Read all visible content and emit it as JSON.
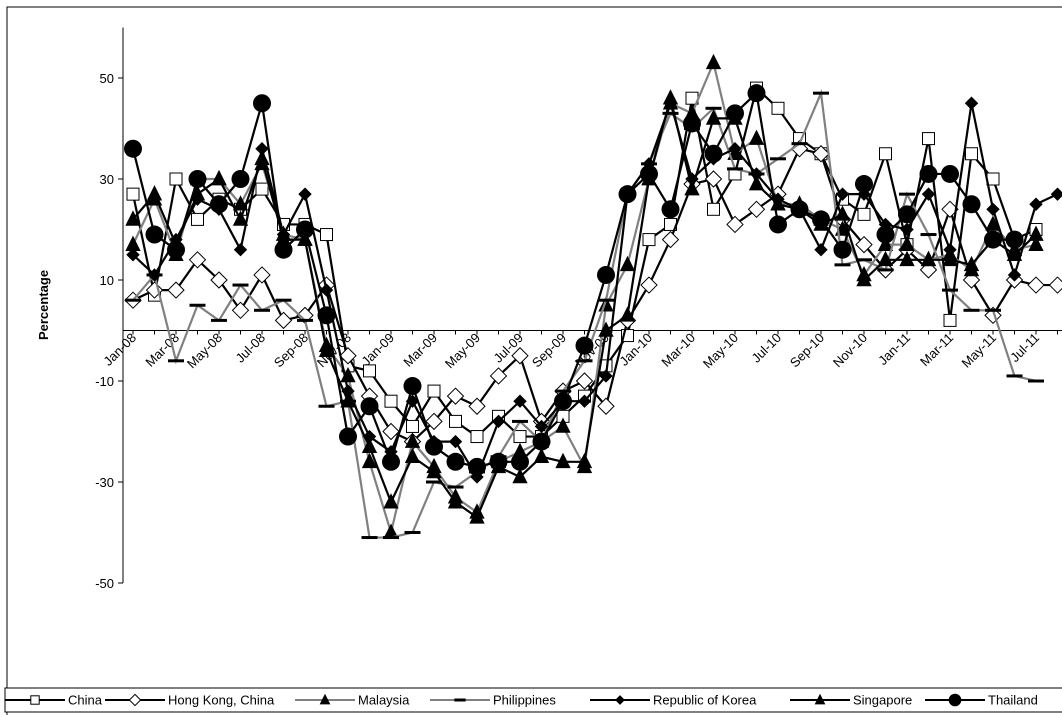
{
  "chart_data": {
    "type": "line",
    "y_label": "Percentage",
    "categories": [
      "Jan-08",
      null,
      "Mar-08",
      null,
      "May-08",
      null,
      "Jul-08",
      null,
      "Sep-08",
      null,
      "Nov-08",
      null,
      "Jan-09",
      null,
      "Mar-09",
      null,
      "May-09",
      null,
      "Jul-09",
      null,
      "Sep-09",
      null,
      "Nov-09",
      null,
      "Jan-10",
      null,
      "Mar-10",
      null,
      "May-10",
      null,
      "Jul-10",
      null,
      "Sep-10",
      null,
      "Nov-10",
      null,
      "Jan-11",
      null,
      "Mar-11",
      null,
      "May-11",
      null,
      "Jul-11",
      null
    ],
    "ylim": [
      -50,
      60
    ],
    "yticks": [
      -50,
      -30,
      -10,
      10,
      30,
      50
    ],
    "series": [
      {
        "name": "China",
        "color": "#000000",
        "marker": "square-open",
        "values": [
          27,
          7,
          30,
          22,
          26,
          24,
          28,
          21,
          21,
          19,
          -7,
          -8,
          -14,
          -19,
          -12,
          -18,
          -21,
          -17,
          -21,
          -21,
          -17,
          -13,
          -7,
          -1,
          18,
          21,
          46,
          24,
          31,
          48,
          44,
          38,
          35,
          26,
          23,
          35,
          17,
          38,
          2,
          35,
          30,
          18,
          20,
          null
        ]
      },
      {
        "name": "Hong Kong, China",
        "color": "#000000",
        "marker": "diamond-open",
        "values": [
          6,
          8,
          8,
          14,
          10,
          4,
          11,
          2,
          3,
          9,
          -5,
          -13,
          -20,
          -22,
          -18,
          -13,
          -15,
          -9,
          -5,
          -18,
          -12,
          -10,
          -15,
          2,
          9,
          18,
          29,
          30,
          21,
          24,
          27,
          36,
          35,
          22,
          17,
          12,
          16,
          12,
          24,
          10,
          3,
          10,
          9,
          9
        ]
      },
      {
        "name": "Malaysia",
        "color": "#808080",
        "marker": "triangle",
        "values": [
          17,
          26,
          15,
          30,
          30,
          25,
          33,
          19,
          18,
          -3,
          -9,
          -26,
          -40,
          -22,
          -27,
          -33,
          -36,
          -26,
          -24,
          -22,
          -19,
          -27,
          5,
          13,
          30,
          45,
          43,
          53,
          35,
          38,
          25,
          25,
          22,
          20,
          11,
          17,
          17,
          14,
          15,
          12,
          21,
          16,
          17,
          null
        ]
      },
      {
        "name": "Philippines",
        "color": "#808080",
        "marker": "dash",
        "values": [
          6,
          11,
          -6,
          5,
          2,
          9,
          4,
          6,
          2,
          -15,
          -14,
          -41,
          -41,
          -40,
          -30,
          -31,
          -28,
          -25,
          -18,
          -22,
          -12,
          -6,
          6,
          27,
          33,
          43,
          40,
          44,
          32,
          31,
          34,
          37,
          47,
          13,
          14,
          12,
          27,
          19,
          8,
          4,
          4,
          -9,
          -10,
          null
        ]
      },
      {
        "name": "Republic of Korea",
        "color": "#000000",
        "marker": "diamond",
        "values": [
          15,
          11,
          18,
          26,
          24,
          16,
          36,
          19,
          27,
          8,
          -12,
          -21,
          -24,
          -14,
          -22,
          -22,
          -29,
          -18,
          -14,
          -19,
          -14,
          -14,
          -9,
          27,
          33,
          45,
          30,
          34,
          36,
          31,
          26,
          24,
          16,
          27,
          27,
          21,
          20,
          27,
          16,
          45,
          24,
          11,
          25,
          27
        ]
      },
      {
        "name": "Singapore",
        "color": "#000000",
        "marker": "triangle",
        "values": [
          22,
          27,
          17,
          27,
          30,
          22,
          34,
          18,
          18,
          -4,
          -14,
          -23,
          -34,
          -25,
          -28,
          -34,
          -37,
          -27,
          -29,
          -25,
          -26,
          -26,
          0,
          3,
          30,
          46,
          28,
          42,
          42,
          29,
          25,
          24,
          21,
          23,
          10,
          14,
          14,
          14,
          14,
          13,
          18,
          15,
          19,
          null
        ]
      },
      {
        "name": "Thailand",
        "color": "#000000",
        "marker": "circle",
        "values": [
          36,
          19,
          16,
          30,
          25,
          30,
          45,
          16,
          20,
          3,
          -21,
          -15,
          -26,
          -11,
          -23,
          -26,
          -27,
          -26,
          -26,
          -22,
          -14,
          -3,
          11,
          27,
          31,
          24,
          41,
          35,
          43,
          47,
          21,
          24,
          22,
          16,
          29,
          19,
          23,
          31,
          31,
          25,
          18,
          18,
          null,
          null
        ]
      }
    ]
  }
}
